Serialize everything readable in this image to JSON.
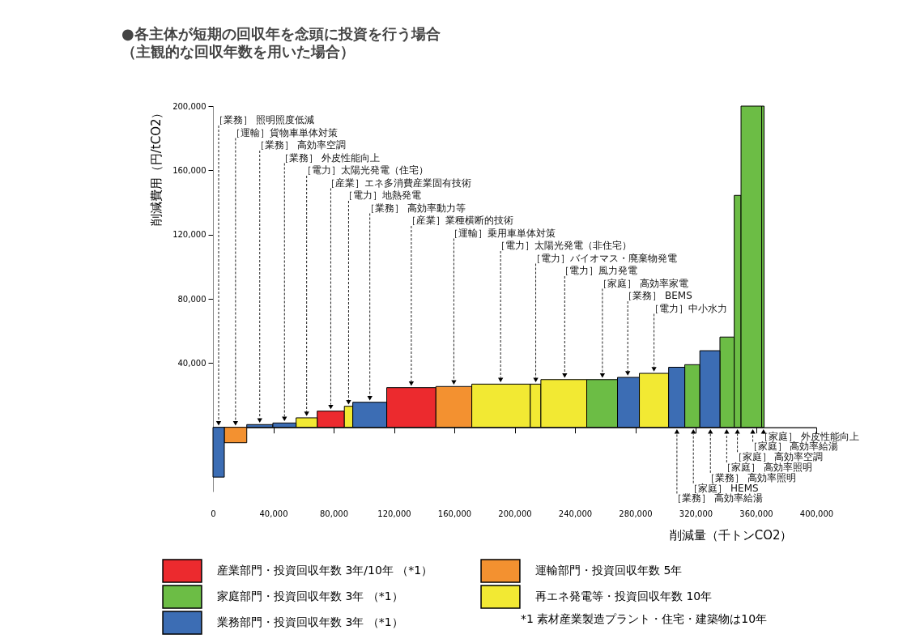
{
  "chart_data": {
    "type": "histogram",
    "title": "●各主体が短期の回収年を念頭に投資を行う場合",
    "subtitle": "（主観的な回収年数を用いた場合）",
    "xlabel": "削減量（千トンCO2）",
    "ylabel": "削減費用（円/tCO2）",
    "bins": [
      0,
      7500,
      22400,
      39700,
      55100,
      69100,
      87100,
      92700,
      115200,
      147800,
      171600,
      210400,
      217400,
      247800,
      268200,
      282700,
      302100,
      312800,
      322800,
      336100,
      345600,
      350100,
      363800,
      365400
    ],
    "series": [
      {
        "name": "産業部門・投資回収年数 3年/10年 （*1）",
        "color": "#ec2a2e",
        "values": [
          null,
          null,
          null,
          null,
          null,
          10100,
          null,
          null,
          24700,
          null,
          null,
          null,
          null,
          null,
          null,
          null,
          null,
          null,
          null,
          null,
          null,
          null,
          null
        ]
      },
      {
        "name": "運輸部門・投資回収年数 5年",
        "color": "#f39130",
        "values": [
          null,
          -9600,
          null,
          null,
          null,
          null,
          null,
          null,
          null,
          25400,
          null,
          null,
          null,
          null,
          null,
          null,
          null,
          null,
          null,
          null,
          null,
          null,
          null
        ]
      },
      {
        "name": "家庭部門・投資回収年数 3年 （*1）",
        "color": "#6cbd45",
        "values": [
          null,
          null,
          null,
          null,
          null,
          null,
          null,
          null,
          null,
          null,
          null,
          null,
          null,
          29700,
          null,
          null,
          null,
          39000,
          null,
          56200,
          144400,
          200000,
          200000
        ]
      },
      {
        "name": "再エネ発電等・投資回収年数 10年",
        "color": "#f2e933",
        "values": [
          null,
          null,
          null,
          null,
          5900,
          null,
          13100,
          null,
          null,
          null,
          26900,
          26900,
          29700,
          null,
          null,
          33600,
          null,
          null,
          null,
          null,
          null,
          null,
          null
        ]
      },
      {
        "name": "業務部門・投資回収年数 3年 （*1）",
        "color": "#3c6db4",
        "values": [
          -31000,
          null,
          1700,
          2700,
          null,
          null,
          null,
          15600,
          null,
          null,
          null,
          null,
          null,
          null,
          31100,
          null,
          37400,
          null,
          47700,
          null,
          null,
          null,
          null
        ]
      }
    ],
    "xlim": [
      0,
      400000
    ],
    "ylim": [
      -40000,
      200000
    ],
    "xticks": [
      0,
      {
        "value": 40000,
        "label": "40,000"
      },
      {
        "value": 80000,
        "label": "80,000"
      },
      {
        "value": 120000,
        "label": "120,000"
      },
      {
        "value": 160000,
        "label": "160,000"
      },
      {
        "value": 200000,
        "label": "200,000"
      },
      {
        "value": 240000,
        "label": "240,000"
      },
      {
        "value": 280000,
        "label": "280,000"
      },
      {
        "value": 320000,
        "label": "320,000"
      },
      {
        "value": 360000,
        "label": "360,000"
      },
      {
        "value": 400000,
        "label": "400,000"
      }
    ],
    "yticks": [
      {
        "value": 40000,
        "label": "40,000"
      },
      {
        "value": 80000,
        "label": "80,000"
      },
      {
        "value": 120000,
        "label": "120,000"
      },
      {
        "value": 160000,
        "label": "160,000"
      },
      {
        "value": 200000,
        "label": "200,000"
      }
    ],
    "legend": "bottom",
    "annotations": [
      {
        "text": "［業務］ 照明照度低減",
        "x": 3750,
        "y": 0
      },
      {
        "text": "［運輸］貨物車単体対策",
        "x": 14950,
        "y": 0
      },
      {
        "text": "［業務］ 高効率空調",
        "x": 31000,
        "y": 1700
      },
      {
        "text": "［業務］ 外皮性能向上",
        "x": 47400,
        "y": 2700
      },
      {
        "text": "［電力］太陽光発電（住宅）",
        "x": 62100,
        "y": 5900
      },
      {
        "text": "［産業］エネ多消費産業固有技術",
        "x": 78100,
        "y": 10100
      },
      {
        "text": "［電力］地熱発電",
        "x": 89900,
        "y": 13100
      },
      {
        "text": "［業務］ 高効率動力等",
        "x": 104000,
        "y": 15600
      },
      {
        "text": "［産業］業種横断的技術",
        "x": 131500,
        "y": 24700
      },
      {
        "text": "［運輸］乗用車単体対策",
        "x": 159700,
        "y": 25400
      },
      {
        "text": "［電力］太陽光発電（非住宅）",
        "x": 190700,
        "y": 26900
      },
      {
        "text": "［電力］バイオマス・廃棄物発電",
        "x": 214000,
        "y": 26900
      },
      {
        "text": "［電力］風力発電",
        "x": 233200,
        "y": 29700
      },
      {
        "text": "［家庭］ 高効率家電",
        "x": 258200,
        "y": 29700
      },
      {
        "text": "［業務］ BEMS",
        "x": 275000,
        "y": 31100
      },
      {
        "text": "［電力］中小水力",
        "x": 292400,
        "y": 33600
      },
      {
        "text": "［家庭］ 外皮性能向上",
        "x": 365000,
        "y": 0
      },
      {
        "text": "［家庭］ 高効率給湯",
        "x": 357900,
        "y": 0
      },
      {
        "text": "［家庭］ 高効率空調",
        "x": 347700,
        "y": 0
      },
      {
        "text": "［家庭］ 高効率照明",
        "x": 340600,
        "y": 0
      },
      {
        "text": "［業務］ 高効率照明",
        "x": 329800,
        "y": 0
      },
      {
        "text": "［家庭］ HEMS",
        "x": 318500,
        "y": 0
      },
      {
        "text": "［業務］ 高効率給湯",
        "x": 307600,
        "y": 0
      },
      "*1 素材産業製造プラント・住宅・建築物は10年"
    ]
  }
}
